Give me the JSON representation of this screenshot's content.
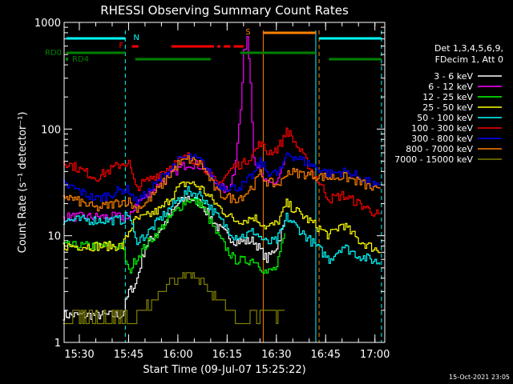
{
  "chart_data": {
    "type": "line",
    "title": "RHESSI Observing Summary Count Rates",
    "xlabel": "Start Time (09-Jul-07 15:25:22)",
    "ylabel": "Count Rate (s⁻¹ detector⁻¹)",
    "yscale": "log",
    "ylim": [
      1,
      1000
    ],
    "xlim": [
      "15:25:22",
      "17:03:00"
    ],
    "x_ticks": [
      "15:30",
      "15:45",
      "16:00",
      "16:15",
      "16:30",
      "16:45",
      "17:00"
    ],
    "y_ticks": [
      "1",
      "10",
      "100",
      "1000"
    ],
    "timestamp": "15-Oct-2021 23:05",
    "legend_header": [
      "Det 1,3,4,5,6,9,",
      "FDecim 1, Att 0"
    ],
    "legend_placement": "right",
    "flags": [
      {
        "label": "N",
        "color": "#00ffff",
        "segments": [
          [
            "15:26",
            "15:44"
          ],
          [
            "16:43",
            "17:02"
          ]
        ],
        "label_at": "15:45"
      },
      {
        "label": "F",
        "color": "#ff0000",
        "segments": [
          [
            "15:46",
            "15:48"
          ],
          [
            "15:58",
            "16:11"
          ],
          [
            "16:12",
            "16:13"
          ],
          [
            "16:14",
            "16:16"
          ],
          [
            "16:17",
            "16:20"
          ]
        ],
        "label_at": "15:44"
      },
      {
        "label": "S",
        "color": "#ff8000",
        "segments": [
          [
            "16:26",
            "16:42"
          ]
        ],
        "label_at": "16:24"
      },
      {
        "label": "RD0",
        "color": "#008000",
        "segments": [
          [
            "15:26",
            "15:44"
          ],
          [
            "16:19",
            "16:42"
          ]
        ],
        "label_at": "15:20"
      },
      {
        "label": "RD4",
        "color": "#008000",
        "segments": [
          [
            "15:47",
            "16:10"
          ],
          [
            "16:46",
            "17:02"
          ]
        ],
        "label_at": "15:27"
      }
    ],
    "vlines": [
      {
        "time": "15:44",
        "color": "#00ffff",
        "style": "dashed"
      },
      {
        "time": "16:26",
        "color": "#ff8000",
        "style": "solid"
      },
      {
        "time": "16:42",
        "color": "#00ffff",
        "style": "solid"
      },
      {
        "time": "16:43",
        "color": "#ff8000",
        "style": "dashed"
      },
      {
        "time": "17:02",
        "color": "#00ffff",
        "style": "dashed"
      }
    ],
    "gaps": [
      [
        "16:34",
        "16:45"
      ]
    ],
    "series": [
      {
        "name": "3 - 6 keV",
        "color": "#ffffff",
        "x": [
          "15:25",
          "15:43",
          "15:45",
          "15:47",
          "15:50",
          "15:55",
          "16:00",
          "16:03",
          "16:07",
          "16:12",
          "16:17",
          "16:20",
          "16:23",
          "16:27",
          "16:30",
          "16:32",
          "16:33",
          "16:46",
          "16:55",
          "17:02"
        ],
        "values": [
          1.8,
          1.8,
          3,
          3.5,
          8,
          12,
          20,
          23,
          20,
          12,
          9,
          8.8,
          9,
          6,
          8,
          12,
          15,
          null,
          null,
          null
        ]
      },
      {
        "name": "6 - 12 keV",
        "color": "#ff00ff",
        "x": [
          "15:25",
          "15:43",
          "15:45",
          "15:47",
          "15:50",
          "15:55",
          "16:00",
          "16:03",
          "16:07",
          "16:12",
          "16:15",
          "16:17",
          "16:19",
          "16:20",
          "16:21",
          "16:22",
          "16:23",
          "16:25",
          "16:27",
          "16:30",
          "16:32",
          "16:33",
          "16:46",
          "16:55",
          "17:02"
        ],
        "values": [
          15,
          15,
          14,
          20,
          23,
          32,
          42,
          48,
          45,
          30,
          26,
          40,
          150,
          500,
          750,
          300,
          55,
          38,
          30,
          32,
          45,
          60,
          null,
          null,
          null
        ]
      },
      {
        "name": "12 - 25 keV",
        "color": "#00ff00",
        "x": [
          "15:25",
          "15:43",
          "15:45",
          "15:47",
          "15:50",
          "15:55",
          "16:00",
          "16:03",
          "16:07",
          "16:12",
          "16:17",
          "16:20",
          "16:23",
          "16:27",
          "16:30",
          "16:32",
          "16:33",
          "16:46",
          "16:55",
          "17:02"
        ],
        "values": [
          8,
          8,
          4.5,
          6,
          8,
          12,
          18,
          22,
          20,
          10,
          6,
          5.8,
          6,
          4.5,
          5,
          9,
          12,
          null,
          null,
          null
        ]
      },
      {
        "name": "25 - 50 keV",
        "color": "#ffff00",
        "x": [
          "15:25",
          "15:43",
          "15:45",
          "15:47",
          "15:50",
          "15:55",
          "16:00",
          "16:03",
          "16:07",
          "16:12",
          "16:17",
          "16:20",
          "16:23",
          "16:27",
          "16:30",
          "16:32",
          "16:33",
          "16:46",
          "16:50",
          "16:55",
          "17:02"
        ],
        "values": [
          8,
          8,
          11,
          14,
          15,
          18,
          28,
          32,
          28,
          19,
          14,
          14,
          15,
          12,
          13,
          17,
          20,
          10,
          13,
          9,
          7
        ]
      },
      {
        "name": "50 - 100 keV",
        "color": "#00ffff",
        "x": [
          "15:25",
          "15:43",
          "15:45",
          "15:47",
          "15:50",
          "15:55",
          "16:00",
          "16:03",
          "16:07",
          "16:12",
          "16:17",
          "16:20",
          "16:23",
          "16:27",
          "16:30",
          "16:32",
          "16:33",
          "16:46",
          "16:50",
          "16:55",
          "17:02"
        ],
        "values": [
          14,
          14,
          16,
          9,
          10,
          15,
          22,
          26,
          24,
          15,
          10,
          10,
          11,
          8.5,
          9,
          12,
          15,
          6,
          8,
          6.5,
          5.5
        ]
      },
      {
        "name": "100 - 300 keV",
        "color": "#ff0000",
        "x": [
          "15:25",
          "15:28",
          "15:35",
          "15:43",
          "15:45",
          "15:47",
          "15:50",
          "15:55",
          "16:00",
          "16:03",
          "16:07",
          "16:12",
          "16:17",
          "16:20",
          "16:23",
          "16:25",
          "16:27",
          "16:30",
          "16:32",
          "16:33",
          "16:46",
          "16:50",
          "16:55",
          "17:02"
        ],
        "values": [
          50,
          45,
          35,
          48,
          48,
          28,
          32,
          40,
          50,
          55,
          48,
          30,
          45,
          48,
          60,
          75,
          60,
          65,
          80,
          100,
          22,
          24,
          20,
          15
        ]
      },
      {
        "name": "300 - 800 keV",
        "color": "#0000ff",
        "x": [
          "15:25",
          "15:28",
          "15:35",
          "15:43",
          "15:45",
          "15:47",
          "15:50",
          "15:55",
          "16:00",
          "16:03",
          "16:07",
          "16:12",
          "16:17",
          "16:20",
          "16:23",
          "16:25",
          "16:27",
          "16:30",
          "16:32",
          "16:33",
          "16:46",
          "16:50",
          "16:55",
          "17:02"
        ],
        "values": [
          30,
          28,
          22,
          27,
          27,
          21,
          24,
          35,
          50,
          55,
          50,
          30,
          28,
          30,
          38,
          50,
          40,
          38,
          45,
          60,
          38,
          40,
          36,
          27
        ]
      },
      {
        "name": "800 - 7000 keV",
        "color": "#ff8000",
        "x": [
          "15:25",
          "15:28",
          "15:35",
          "15:43",
          "15:45",
          "15:47",
          "15:50",
          "15:55",
          "16:00",
          "16:03",
          "16:07",
          "16:12",
          "16:17",
          "16:20",
          "16:23",
          "16:25",
          "16:27",
          "16:30",
          "16:32",
          "16:33",
          "16:46",
          "16:50",
          "16:55",
          "17:02"
        ],
        "values": [
          24,
          22,
          18,
          21,
          21,
          18,
          20,
          30,
          47,
          52,
          47,
          25,
          22,
          24,
          30,
          38,
          32,
          30,
          33,
          40,
          35,
          36,
          32,
          25
        ]
      },
      {
        "name": "7000 - 15000 keV",
        "color": "#808000",
        "x": [
          "15:25",
          "15:28",
          "15:35",
          "15:43",
          "15:47",
          "15:50",
          "15:55",
          "16:00",
          "16:03",
          "16:07",
          "16:12",
          "16:17",
          "16:20",
          "16:23",
          "16:25",
          "16:27",
          "16:30",
          "16:32",
          "16:33"
        ],
        "values": [
          1.6,
          1.8,
          1.6,
          1.8,
          1.6,
          2.2,
          3,
          4,
          4.5,
          3.8,
          2.5,
          1.8,
          1.5,
          2,
          1.7,
          2,
          1.8,
          2,
          1.8
        ]
      }
    ]
  }
}
